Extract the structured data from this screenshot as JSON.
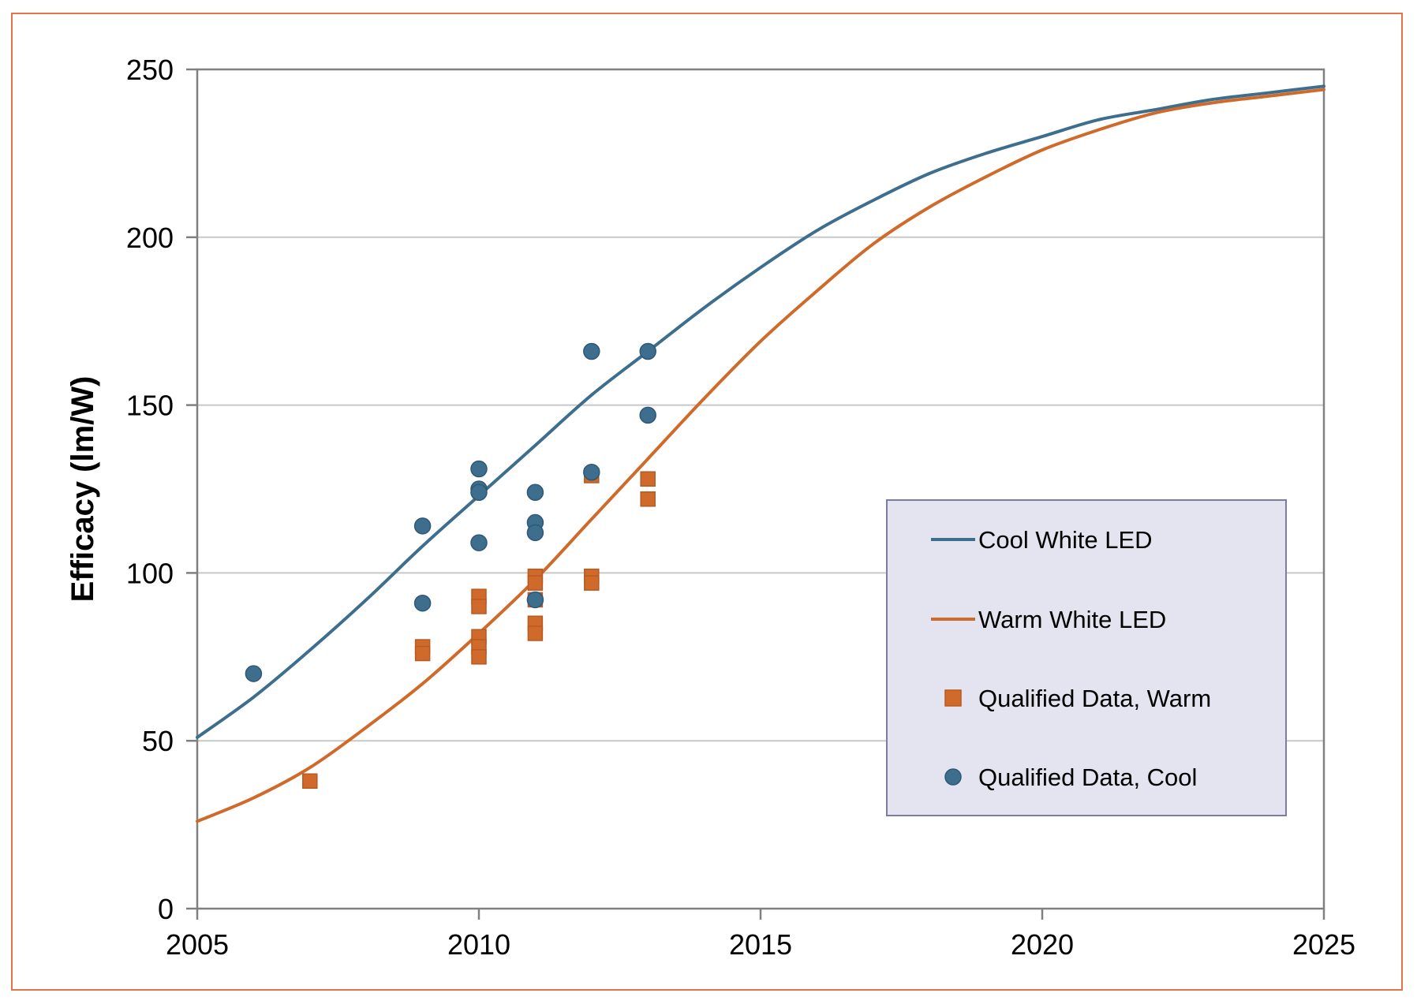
{
  "chart_data": {
    "type": "line",
    "title": "",
    "xlabel": "",
    "ylabel": "Efficacy (lm/W)",
    "xlim": [
      2005,
      2025
    ],
    "ylim": [
      0,
      250
    ],
    "x_ticks": [
      "2005",
      "2010",
      "2015",
      "2020",
      "2025"
    ],
    "y_ticks": [
      "0",
      "50",
      "100",
      "150",
      "200",
      "250"
    ],
    "grid": "horizontal",
    "legend_position": "right",
    "colors": {
      "cool": "#3e6e8e",
      "warm": "#d06a2a",
      "frame": "#e8734a",
      "legend_bg": "#e4e3f0",
      "legend_border": "#7c7ba6",
      "grid": "#c8c8c8",
      "axis": "#808080"
    },
    "series": [
      {
        "name": "Cool White LED",
        "kind": "line",
        "x": [
          2005,
          2006,
          2007,
          2008,
          2009,
          2010,
          2011,
          2012,
          2013,
          2014,
          2015,
          2016,
          2017,
          2018,
          2019,
          2020,
          2021,
          2022,
          2023,
          2024,
          2025
        ],
        "values": [
          51,
          63,
          77,
          92,
          108,
          123,
          138,
          153,
          166,
          179,
          191,
          202,
          211,
          219,
          225,
          230,
          235,
          238,
          241,
          243,
          245
        ]
      },
      {
        "name": "Warm White LED",
        "kind": "line",
        "x": [
          2005,
          2006,
          2007,
          2008,
          2009,
          2010,
          2011,
          2012,
          2013,
          2014,
          2015,
          2016,
          2017,
          2018,
          2019,
          2020,
          2021,
          2022,
          2023,
          2024,
          2025
        ],
        "values": [
          26,
          33,
          42,
          54,
          67,
          82,
          98,
          116,
          134,
          152,
          169,
          184,
          198,
          209,
          218,
          226,
          232,
          237,
          240,
          242,
          244
        ]
      },
      {
        "name": "Qualified Data, Warm",
        "kind": "scatter-square",
        "points": [
          [
            2007,
            38
          ],
          [
            2009,
            78
          ],
          [
            2009,
            76
          ],
          [
            2010,
            93
          ],
          [
            2010,
            90
          ],
          [
            2010,
            81
          ],
          [
            2010,
            78
          ],
          [
            2010,
            75
          ],
          [
            2011,
            99
          ],
          [
            2011,
            97
          ],
          [
            2011,
            92
          ],
          [
            2011,
            85
          ],
          [
            2011,
            82
          ],
          [
            2012,
            99
          ],
          [
            2012,
            97
          ],
          [
            2012,
            129
          ],
          [
            2013,
            128
          ],
          [
            2013,
            122
          ]
        ]
      },
      {
        "name": "Qualified Data, Cool",
        "kind": "scatter-circle",
        "points": [
          [
            2006,
            70
          ],
          [
            2009,
            114
          ],
          [
            2009,
            91
          ],
          [
            2010,
            131
          ],
          [
            2010,
            125
          ],
          [
            2010,
            124
          ],
          [
            2010,
            109
          ],
          [
            2011,
            124
          ],
          [
            2011,
            115
          ],
          [
            2011,
            112
          ],
          [
            2011,
            92
          ],
          [
            2012,
            166
          ],
          [
            2012,
            130
          ],
          [
            2013,
            166
          ],
          [
            2013,
            147
          ]
        ]
      }
    ]
  }
}
